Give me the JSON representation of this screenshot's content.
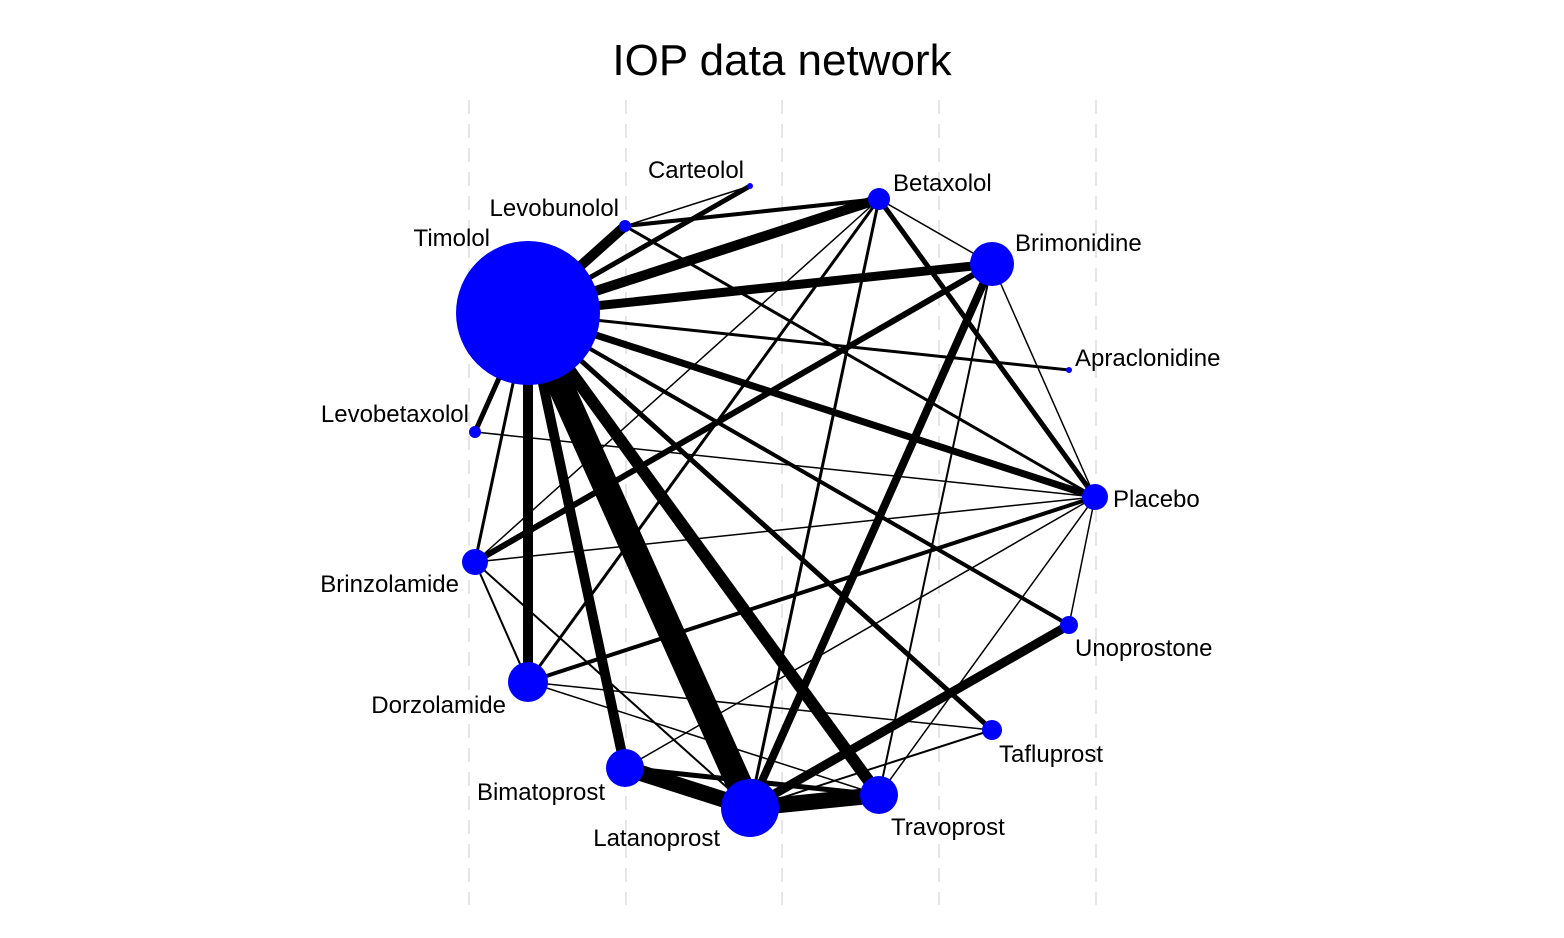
{
  "chart_data": {
    "type": "network",
    "title": "IOP data network",
    "node_color": "#0000ff",
    "edge_color": "#000000",
    "nodes": [
      {
        "id": "Timolol",
        "label": "Timolol",
        "size": 72
      },
      {
        "id": "Carteolol",
        "label": "Carteolol",
        "size": 3
      },
      {
        "id": "Levobunolol",
        "label": "Levobunolol",
        "size": 6
      },
      {
        "id": "Betaxolol",
        "label": "Betaxolol",
        "size": 11
      },
      {
        "id": "Brimonidine",
        "label": "Brimonidine",
        "size": 22
      },
      {
        "id": "Apraclonidine",
        "label": "Apraclonidine",
        "size": 3
      },
      {
        "id": "Placebo",
        "label": "Placebo",
        "size": 13
      },
      {
        "id": "Unoprostone",
        "label": "Unoprostone",
        "size": 9
      },
      {
        "id": "Tafluprost",
        "label": "Tafluprost",
        "size": 10
      },
      {
        "id": "Travoprost",
        "label": "Travoprost",
        "size": 19
      },
      {
        "id": "Latanoprost",
        "label": "Latanoprost",
        "size": 29
      },
      {
        "id": "Bimatoprost",
        "label": "Bimatoprost",
        "size": 19
      },
      {
        "id": "Dorzolamide",
        "label": "Dorzolamide",
        "size": 20
      },
      {
        "id": "Brinzolamide",
        "label": "Brinzolamide",
        "size": 13
      },
      {
        "id": "Levobetaxolol",
        "label": "Levobetaxolol",
        "size": 6
      }
    ],
    "edges": [
      {
        "from": "Timolol",
        "to": "Latanoprost",
        "weight": 26
      },
      {
        "from": "Timolol",
        "to": "Travoprost",
        "weight": 12
      },
      {
        "from": "Timolol",
        "to": "Betaxolol",
        "weight": 10
      },
      {
        "from": "Timolol",
        "to": "Dorzolamide",
        "weight": 10
      },
      {
        "from": "Timolol",
        "to": "Bimatoprost",
        "weight": 10
      },
      {
        "from": "Timolol",
        "to": "Levobunolol",
        "weight": 10
      },
      {
        "from": "Timolol",
        "to": "Brimonidine",
        "weight": 9
      },
      {
        "from": "Timolol",
        "to": "Placebo",
        "weight": 7
      },
      {
        "from": "Timolol",
        "to": "Carteolol",
        "weight": 5
      },
      {
        "from": "Timolol",
        "to": "Tafluprost",
        "weight": 5
      },
      {
        "from": "Timolol",
        "to": "Levobetaxolol",
        "weight": 5
      },
      {
        "from": "Timolol",
        "to": "Unoprostone",
        "weight": 4
      },
      {
        "from": "Timolol",
        "to": "Brinzolamide",
        "weight": 3
      },
      {
        "from": "Timolol",
        "to": "Apraclonidine",
        "weight": 3
      },
      {
        "from": "Bimatoprost",
        "to": "Latanoprost",
        "weight": 16
      },
      {
        "from": "Latanoprost",
        "to": "Travoprost",
        "weight": 16
      },
      {
        "from": "Latanoprost",
        "to": "Unoprostone",
        "weight": 9
      },
      {
        "from": "Latanoprost",
        "to": "Brimonidine",
        "weight": 8
      },
      {
        "from": "Latanoprost",
        "to": "Betaxolol",
        "weight": 3
      },
      {
        "from": "Latanoprost",
        "to": "Tafluprost",
        "weight": 2
      },
      {
        "from": "Latanoprost",
        "to": "Brinzolamide",
        "weight": 2
      },
      {
        "from": "Bimatoprost",
        "to": "Travoprost",
        "weight": 5
      },
      {
        "from": "Bimatoprost",
        "to": "Placebo",
        "weight": 1.5
      },
      {
        "from": "Travoprost",
        "to": "Brimonidine",
        "weight": 2
      },
      {
        "from": "Travoprost",
        "to": "Dorzolamide",
        "weight": 1.5
      },
      {
        "from": "Travoprost",
        "to": "Placebo",
        "weight": 1.5
      },
      {
        "from": "Betaxolol",
        "to": "Levobunolol",
        "weight": 4
      },
      {
        "from": "Betaxolol",
        "to": "Placebo",
        "weight": 5
      },
      {
        "from": "Betaxolol",
        "to": "Dorzolamide",
        "weight": 3
      },
      {
        "from": "Betaxolol",
        "to": "Brimonidine",
        "weight": 1.5
      },
      {
        "from": "Betaxolol",
        "to": "Brinzolamide",
        "weight": 1.5
      },
      {
        "from": "Levobunolol",
        "to": "Carteolol",
        "weight": 1.5
      },
      {
        "from": "Levobunolol",
        "to": "Placebo",
        "weight": 3
      },
      {
        "from": "Brimonidine",
        "to": "Brinzolamide",
        "weight": 6
      },
      {
        "from": "Brimonidine",
        "to": "Placebo",
        "weight": 1.5
      },
      {
        "from": "Dorzolamide",
        "to": "Placebo",
        "weight": 4
      },
      {
        "from": "Dorzolamide",
        "to": "Brinzolamide",
        "weight": 2
      },
      {
        "from": "Dorzolamide",
        "to": "Tafluprost",
        "weight": 1.5
      },
      {
        "from": "Brinzolamide",
        "to": "Placebo",
        "weight": 1.5
      },
      {
        "from": "Levobetaxolol",
        "to": "Placebo",
        "weight": 1.5
      },
      {
        "from": "Unoprostone",
        "to": "Placebo",
        "weight": 1.5
      }
    ]
  }
}
